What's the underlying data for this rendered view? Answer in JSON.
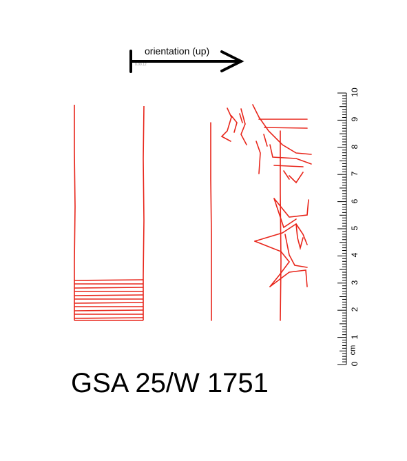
{
  "orientation": {
    "label": "orientation (up)",
    "tiny_text": "0.00.12"
  },
  "catalog_number": "GSA 25/W 1751",
  "scale": {
    "unit": "cm",
    "labels": [
      "0",
      "1",
      "2",
      "3",
      "4",
      "5",
      "6",
      "7",
      "8",
      "9",
      "10"
    ]
  },
  "colors": {
    "drawing": "#e8251a",
    "ink": "#000000"
  }
}
